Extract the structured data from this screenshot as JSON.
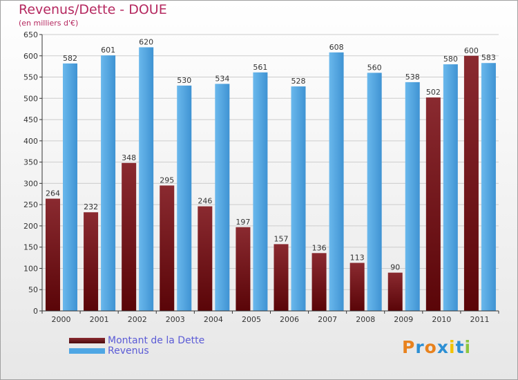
{
  "header": {
    "title": "Revenus/Dette - DOUE",
    "subtitle": "(en milliers d'€)"
  },
  "legend": {
    "debt_label": "Montant de la Dette",
    "revenue_label": "Revenus"
  },
  "logo": {
    "text": "Proxiti",
    "colors": [
      "#e8821e",
      "#2c8fd4",
      "#e8821e",
      "#2c8fd4",
      "#f2c200",
      "#2c8fd4",
      "#8cc63f"
    ]
  },
  "colors": {
    "debt": "#7a1c22",
    "debt_dark": "#4a0a0e",
    "revenue": "#5aaee6",
    "revenue_dark": "#3f8cc9",
    "title": "#b5285f",
    "grid": "#cccccc"
  },
  "chart_data": {
    "type": "bar",
    "title": "Revenus/Dette - DOUE",
    "ylabel": "(en milliers d'€)",
    "categories": [
      "2000",
      "2001",
      "2002",
      "2003",
      "2004",
      "2005",
      "2006",
      "2007",
      "2008",
      "2009",
      "2010",
      "2011"
    ],
    "series": [
      {
        "name": "Montant de la Dette",
        "values": [
          264,
          232,
          348,
          295,
          246,
          197,
          157,
          136,
          113,
          90,
          502,
          600
        ]
      },
      {
        "name": "Revenus",
        "values": [
          582,
          601,
          620,
          530,
          534,
          561,
          528,
          608,
          560,
          538,
          580,
          583
        ]
      }
    ],
    "ylim": [
      0,
      650
    ],
    "yticks": [
      0,
      50,
      100,
      150,
      200,
      250,
      300,
      350,
      400,
      450,
      500,
      550,
      600,
      650
    ],
    "grid": true,
    "legend_position": "bottom-left"
  }
}
